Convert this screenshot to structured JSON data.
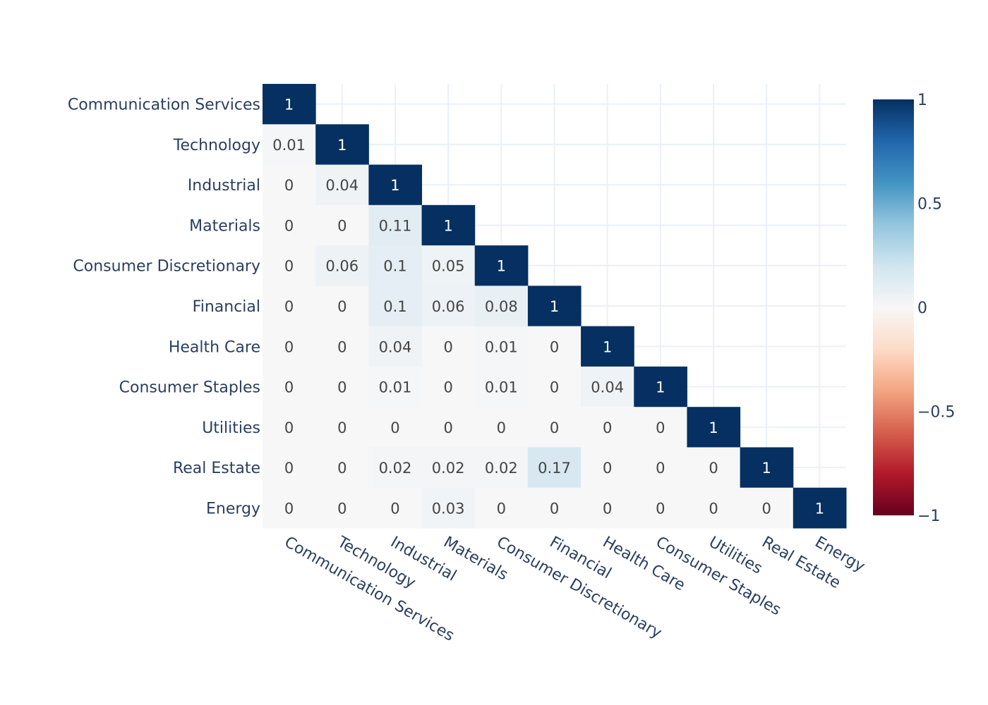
{
  "chart_data": {
    "type": "heatmap",
    "title": "",
    "xlabel": "",
    "ylabel": "",
    "categories": [
      "Communication Services",
      "Technology",
      "Industrial",
      "Materials",
      "Consumer Discretionary",
      "Financial",
      "Health Care",
      "Consumer Staples",
      "Utilities",
      "Real Estate",
      "Energy"
    ],
    "z": [
      [
        1,
        null,
        null,
        null,
        null,
        null,
        null,
        null,
        null,
        null,
        null
      ],
      [
        0.01,
        1,
        null,
        null,
        null,
        null,
        null,
        null,
        null,
        null,
        null
      ],
      [
        0,
        0.04,
        1,
        null,
        null,
        null,
        null,
        null,
        null,
        null,
        null
      ],
      [
        0,
        0,
        0.11,
        1,
        null,
        null,
        null,
        null,
        null,
        null,
        null
      ],
      [
        0,
        0.06,
        0.1,
        0.05,
        1,
        null,
        null,
        null,
        null,
        null,
        null
      ],
      [
        0,
        0,
        0.1,
        0.06,
        0.08,
        1,
        null,
        null,
        null,
        null,
        null
      ],
      [
        0,
        0,
        0.04,
        0,
        0.01,
        0,
        1,
        null,
        null,
        null,
        null
      ],
      [
        0,
        0,
        0.01,
        0,
        0.01,
        0,
        0.04,
        1,
        null,
        null,
        null
      ],
      [
        0,
        0,
        0,
        0,
        0,
        0,
        0,
        0,
        1,
        null,
        null
      ],
      [
        0,
        0,
        0.02,
        0.02,
        0.02,
        0.17,
        0,
        0,
        0,
        1,
        null
      ],
      [
        0,
        0,
        0,
        0.03,
        0,
        0,
        0,
        0,
        0,
        0,
        1
      ]
    ],
    "zrange": [
      -1,
      1
    ],
    "colorscale": "RdBu",
    "colorbar_ticks": [
      {
        "value": 1,
        "label": "1"
      },
      {
        "value": 0.5,
        "label": "0.5"
      },
      {
        "value": 0,
        "label": "0"
      },
      {
        "value": -0.5,
        "label": "−0.5"
      },
      {
        "value": -1,
        "label": "−1"
      }
    ],
    "colorbar_colors": [
      "#67001f",
      "#b2182b",
      "#d6604d",
      "#f4a582",
      "#fddbc7",
      "#f7f7f7",
      "#d1e5f0",
      "#92c5de",
      "#4393c3",
      "#2166ac",
      "#053061"
    ],
    "grid": true,
    "legend": "colorbar-right"
  }
}
